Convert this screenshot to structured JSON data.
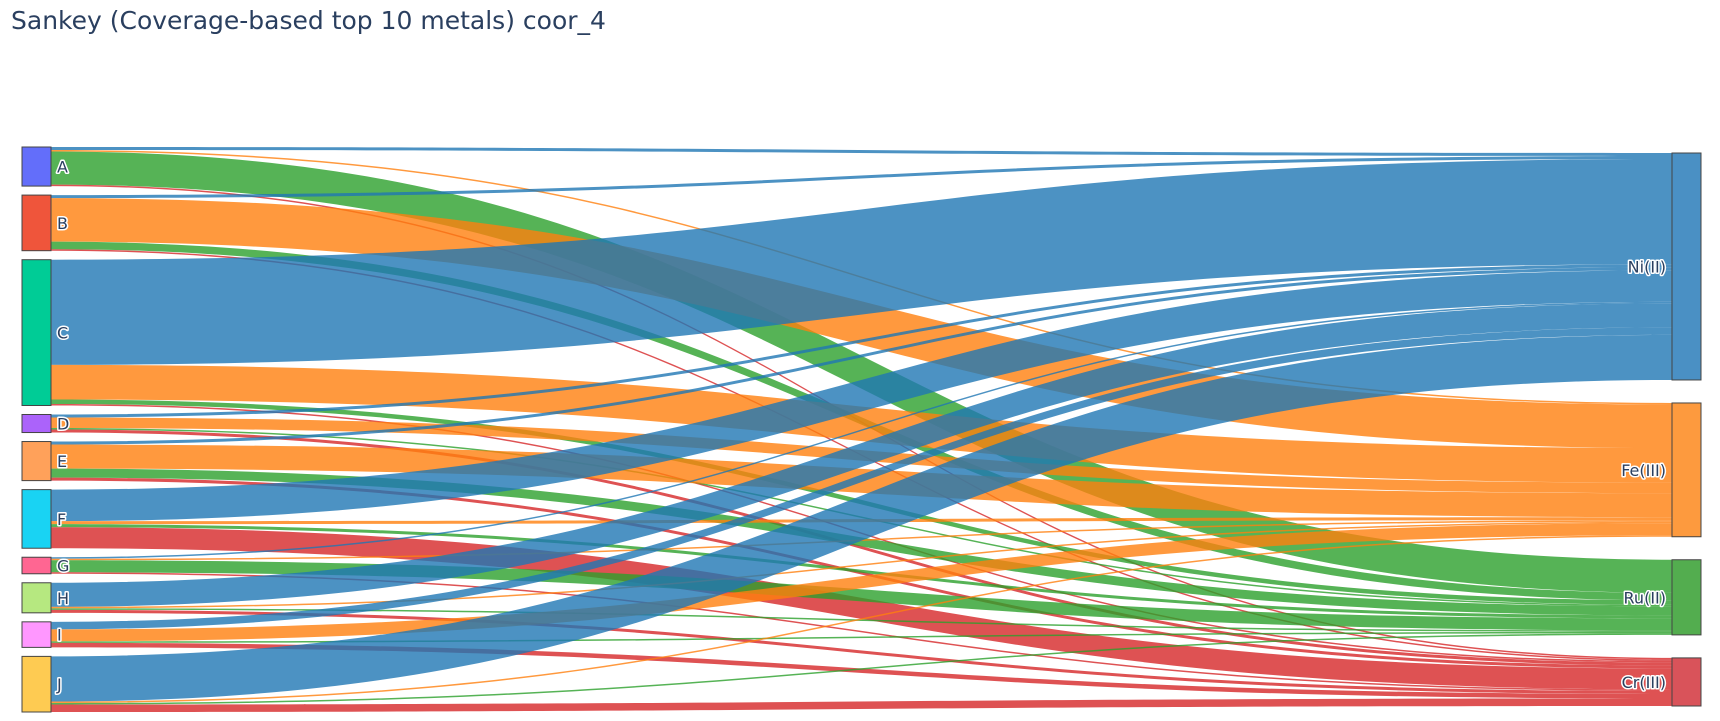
{
  "chart_data": {
    "type": "sankey",
    "title": "Sankey (Coverage-based top 10 metals) coor_4",
    "sources": [
      {
        "name": "A",
        "color": "#636efa"
      },
      {
        "name": "B",
        "color": "#ef553b"
      },
      {
        "name": "C",
        "color": "#00cc96"
      },
      {
        "name": "D",
        "color": "#ab63fa"
      },
      {
        "name": "E",
        "color": "#ffa15a"
      },
      {
        "name": "F",
        "color": "#19d3f3"
      },
      {
        "name": "G",
        "color": "#ff6692"
      },
      {
        "name": "H",
        "color": "#b6e880"
      },
      {
        "name": "I",
        "color": "#ff97ff"
      },
      {
        "name": "J",
        "color": "#fecb52"
      }
    ],
    "targets": [
      {
        "name": "Ni(II)",
        "color": "#4a90c4"
      },
      {
        "name": "Fe(III)",
        "color": "#fd9a3e"
      },
      {
        "name": "Ru(II)",
        "color": "#53ad4f"
      },
      {
        "name": "Cr(III)",
        "color": "#d9535a"
      }
    ],
    "link_colors": {
      "Ni(II)": "#1f77b4",
      "Fe(III)": "#ff7f0e",
      "Ru(II)": "#2ca02c",
      "Cr(III)": "#d62728"
    },
    "links": [
      {
        "source": "A",
        "target": "Ni(II)",
        "value": 2
      },
      {
        "source": "A",
        "target": "Fe(III)",
        "value": 1
      },
      {
        "source": "A",
        "target": "Ru(II)",
        "value": 22
      },
      {
        "source": "A",
        "target": "Cr(III)",
        "value": 1
      },
      {
        "source": "B",
        "target": "Ni(II)",
        "value": 2
      },
      {
        "source": "B",
        "target": "Fe(III)",
        "value": 29
      },
      {
        "source": "B",
        "target": "Ru(II)",
        "value": 5
      },
      {
        "source": "B",
        "target": "Cr(III)",
        "value": 1
      },
      {
        "source": "C",
        "target": "Ni(II)",
        "value": 70
      },
      {
        "source": "C",
        "target": "Fe(III)",
        "value": 23
      },
      {
        "source": "C",
        "target": "Ru(II)",
        "value": 3
      },
      {
        "source": "C",
        "target": "Cr(III)",
        "value": 1
      },
      {
        "source": "D",
        "target": "Ni(II)",
        "value": 2
      },
      {
        "source": "D",
        "target": "Fe(III)",
        "value": 7
      },
      {
        "source": "D",
        "target": "Ru(II)",
        "value": 1
      },
      {
        "source": "D",
        "target": "Cr(III)",
        "value": 2
      },
      {
        "source": "E",
        "target": "Ni(II)",
        "value": 2
      },
      {
        "source": "E",
        "target": "Fe(III)",
        "value": 16
      },
      {
        "source": "E",
        "target": "Ru(II)",
        "value": 6
      },
      {
        "source": "E",
        "target": "Cr(III)",
        "value": 2
      },
      {
        "source": "F",
        "target": "Ni(II)",
        "value": 21
      },
      {
        "source": "F",
        "target": "Fe(III)",
        "value": 2
      },
      {
        "source": "F",
        "target": "Ru(II)",
        "value": 2
      },
      {
        "source": "F",
        "target": "Cr(III)",
        "value": 14
      },
      {
        "source": "G",
        "target": "Ni(II)",
        "value": 1
      },
      {
        "source": "G",
        "target": "Fe(III)",
        "value": 1
      },
      {
        "source": "G",
        "target": "Ru(II)",
        "value": 8
      },
      {
        "source": "G",
        "target": "Cr(III)",
        "value": 1
      },
      {
        "source": "H",
        "target": "Ni(II)",
        "value": 16
      },
      {
        "source": "H",
        "target": "Fe(III)",
        "value": 1
      },
      {
        "source": "H",
        "target": "Ru(II)",
        "value": 1
      },
      {
        "source": "H",
        "target": "Cr(III)",
        "value": 2
      },
      {
        "source": "I",
        "target": "Ni(II)",
        "value": 5
      },
      {
        "source": "I",
        "target": "Fe(III)",
        "value": 8
      },
      {
        "source": "I",
        "target": "Ru(II)",
        "value": 1
      },
      {
        "source": "I",
        "target": "Cr(III)",
        "value": 3
      },
      {
        "source": "J",
        "target": "Ni(II)",
        "value": 30
      },
      {
        "source": "J",
        "target": "Fe(III)",
        "value": 1
      },
      {
        "source": "J",
        "target": "Ru(II)",
        "value": 1
      },
      {
        "source": "J",
        "target": "Cr(III)",
        "value": 5
      }
    ]
  }
}
